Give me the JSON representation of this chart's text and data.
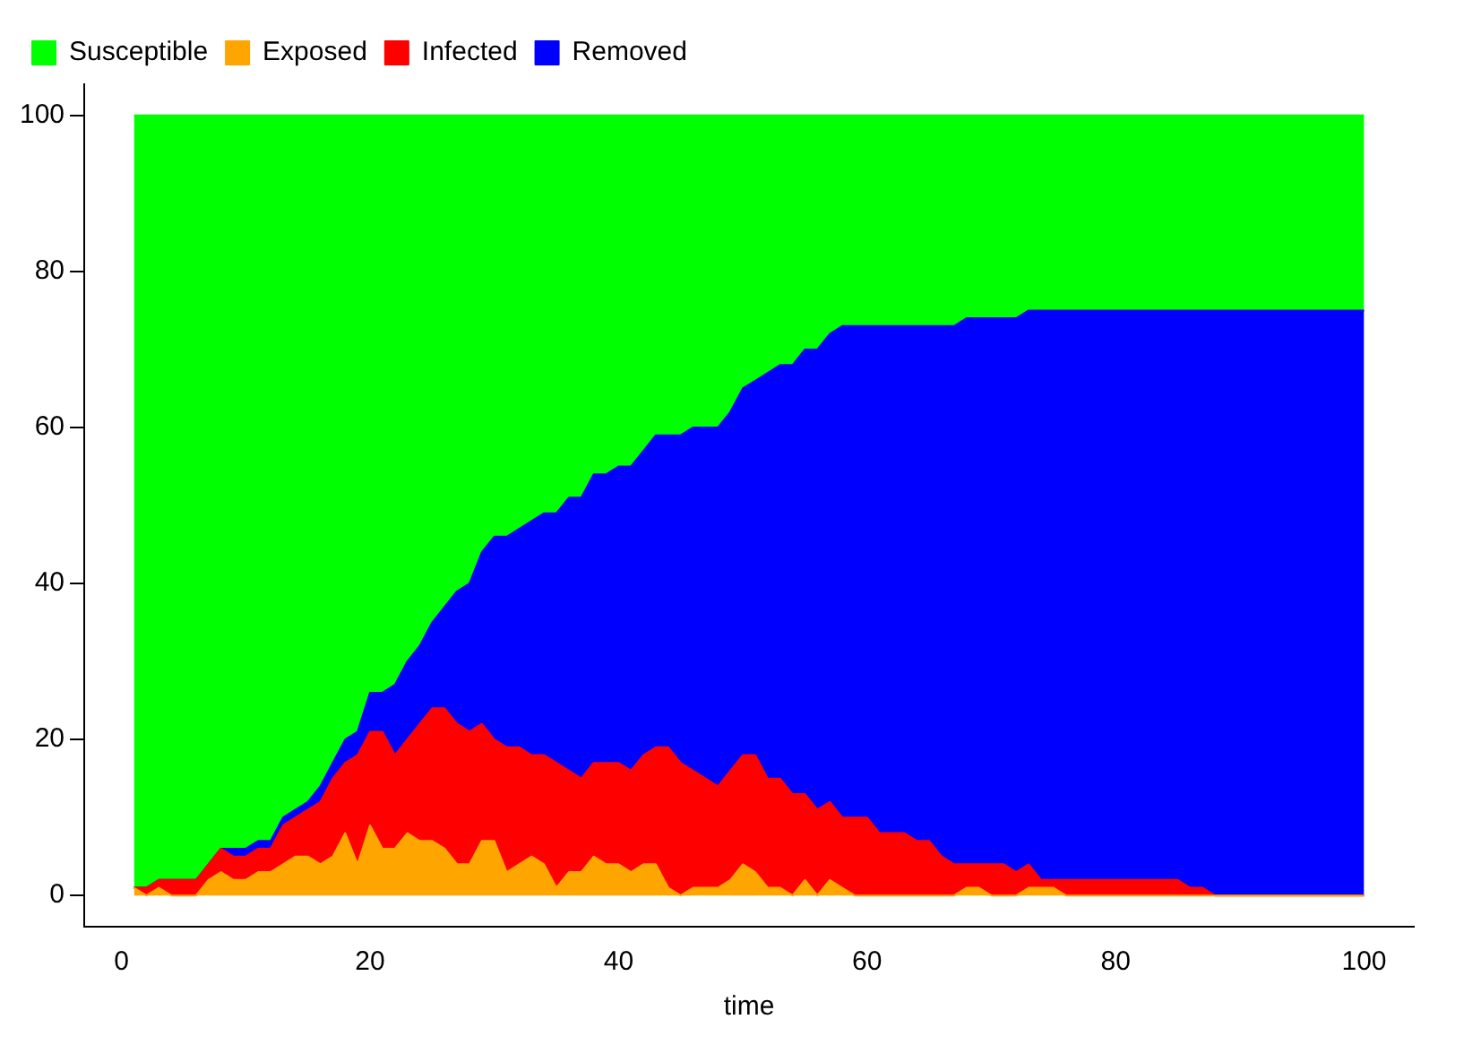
{
  "chart_data": {
    "type": "area",
    "stacked": true,
    "xlabel": "time",
    "legend": "top left",
    "grid": false,
    "xlim": [
      -3,
      104
    ],
    "xticks": [
      0,
      20,
      40,
      60,
      80,
      100
    ],
    "ylim": [
      -4,
      104
    ],
    "yticks": [
      0,
      20,
      40,
      60,
      80,
      100
    ],
    "x": [
      1,
      2,
      3,
      4,
      5,
      6,
      7,
      8,
      9,
      10,
      11,
      12,
      13,
      14,
      15,
      16,
      17,
      18,
      19,
      20,
      21,
      22,
      23,
      24,
      25,
      26,
      27,
      28,
      29,
      30,
      31,
      32,
      33,
      34,
      35,
      36,
      37,
      38,
      39,
      40,
      41,
      42,
      43,
      44,
      45,
      46,
      47,
      48,
      49,
      50,
      51,
      52,
      53,
      54,
      55,
      56,
      57,
      58,
      59,
      60,
      61,
      62,
      63,
      64,
      65,
      66,
      67,
      68,
      69,
      70,
      71,
      72,
      73,
      74,
      75,
      76,
      77,
      78,
      79,
      80,
      81,
      82,
      83,
      84,
      85,
      86,
      87,
      88,
      89,
      90,
      91,
      92,
      93,
      94,
      95,
      96,
      97,
      98,
      99,
      100
    ],
    "series": [
      {
        "name": "Exposed",
        "color": "#ffa500",
        "values": [
          1,
          0,
          1,
          0,
          0,
          0,
          2,
          3,
          2,
          2,
          3,
          3,
          4,
          5,
          5,
          4,
          5,
          8,
          4,
          9,
          6,
          6,
          8,
          7,
          7,
          6,
          4,
          4,
          7,
          7,
          3,
          4,
          5,
          4,
          1,
          3,
          3,
          5,
          4,
          4,
          3,
          4,
          4,
          1,
          0,
          1,
          1,
          1,
          2,
          4,
          3,
          1,
          1,
          0,
          2,
          0,
          2,
          1,
          0,
          0,
          0,
          0,
          0,
          0,
          0,
          0,
          0,
          1,
          1,
          0,
          0,
          0,
          1,
          1,
          1,
          0,
          0,
          0,
          0,
          0,
          0,
          0,
          0,
          0,
          0,
          0,
          0,
          0,
          0,
          0,
          0,
          0,
          0,
          0,
          0,
          0,
          0,
          0,
          0,
          0
        ]
      },
      {
        "name": "Infected",
        "color": "#ff0000",
        "values": [
          0,
          1,
          1,
          2,
          2,
          2,
          2,
          3,
          3,
          3,
          3,
          3,
          5,
          5,
          6,
          8,
          10,
          9,
          14,
          12,
          15,
          12,
          12,
          15,
          17,
          18,
          18,
          17,
          15,
          13,
          16,
          15,
          13,
          14,
          16,
          13,
          12,
          12,
          13,
          13,
          13,
          14,
          15,
          18,
          17,
          15,
          14,
          13,
          14,
          14,
          15,
          14,
          14,
          13,
          11,
          11,
          10,
          9,
          10,
          10,
          8,
          8,
          8,
          7,
          7,
          5,
          4,
          3,
          3,
          4,
          4,
          3,
          3,
          1,
          1,
          2,
          2,
          2,
          2,
          2,
          2,
          2,
          2,
          2,
          2,
          1,
          1,
          0,
          0,
          0,
          0,
          0,
          0,
          0,
          0,
          0,
          0,
          0,
          0,
          0
        ]
      },
      {
        "name": "Removed",
        "color": "#0000ff",
        "values": [
          0,
          0,
          0,
          0,
          0,
          0,
          0,
          0,
          1,
          1,
          1,
          1,
          1,
          1,
          1,
          2,
          2,
          3,
          3,
          5,
          5,
          9,
          10,
          10,
          11,
          13,
          17,
          19,
          22,
          26,
          27,
          28,
          30,
          31,
          32,
          35,
          36,
          37,
          37,
          38,
          39,
          39,
          40,
          40,
          42,
          44,
          45,
          46,
          46,
          47,
          48,
          52,
          53,
          55,
          57,
          59,
          60,
          63,
          63,
          63,
          65,
          65,
          65,
          66,
          66,
          68,
          69,
          70,
          70,
          70,
          70,
          71,
          71,
          73,
          73,
          73,
          73,
          73,
          73,
          73,
          73,
          73,
          73,
          73,
          73,
          74,
          74,
          75,
          75,
          75,
          75,
          75,
          75,
          75,
          75,
          75,
          75,
          75,
          75,
          75
        ]
      },
      {
        "name": "Susceptible",
        "color": "#00ff00",
        "values": [
          99,
          99,
          98,
          98,
          98,
          98,
          96,
          94,
          94,
          94,
          93,
          93,
          90,
          89,
          88,
          86,
          83,
          80,
          79,
          74,
          74,
          73,
          70,
          68,
          65,
          63,
          61,
          60,
          56,
          54,
          54,
          53,
          52,
          51,
          51,
          49,
          49,
          46,
          46,
          45,
          45,
          43,
          41,
          41,
          41,
          40,
          40,
          40,
          38,
          35,
          34,
          33,
          32,
          32,
          30,
          30,
          28,
          27,
          27,
          27,
          27,
          27,
          27,
          27,
          27,
          27,
          27,
          26,
          26,
          26,
          26,
          26,
          25,
          25,
          25,
          25,
          25,
          25,
          25,
          25,
          25,
          25,
          25,
          25,
          25,
          25,
          25,
          25,
          25,
          25,
          25,
          25,
          25,
          25,
          25,
          25,
          25,
          25,
          25,
          25
        ]
      }
    ]
  }
}
